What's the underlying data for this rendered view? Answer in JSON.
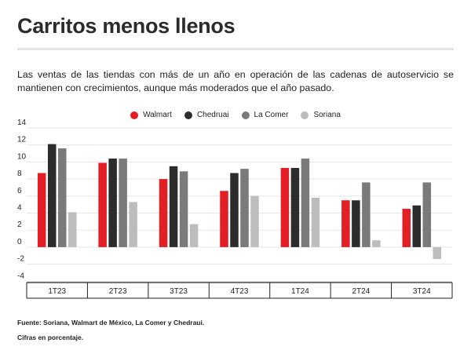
{
  "header": {
    "title": "Carritos menos llenos",
    "subtitle": "Las ventas de las tiendas con más de un año en operación de las cadenas de autoservicio se mantienen con crecimientos, aunque más moderados que el año pasado."
  },
  "footer": {
    "source": "Fuente: Soriana, Walmart de México, La Comer y Chedraui.",
    "note": "Cifras en porcentaje."
  },
  "chart_data": {
    "type": "bar",
    "categories": [
      "1T23",
      "2T23",
      "3T23",
      "4T23",
      "1T24",
      "2T24",
      "3T24"
    ],
    "series": [
      {
        "name": "Walmart",
        "color": "#e31e25",
        "values": [
          8.7,
          9.9,
          8.0,
          6.6,
          9.3,
          5.5,
          4.5
        ]
      },
      {
        "name": "Chedruai",
        "color": "#2c2c2c",
        "values": [
          12.1,
          10.4,
          9.5,
          8.7,
          9.3,
          5.5,
          4.9
        ]
      },
      {
        "name": "La Comer",
        "color": "#7a7a7a",
        "values": [
          11.6,
          10.4,
          8.9,
          9.2,
          10.4,
          7.6,
          7.6
        ]
      },
      {
        "name": "Soriana",
        "color": "#bdbdbd",
        "values": [
          4.1,
          5.3,
          2.7,
          6.0,
          5.8,
          0.8,
          -1.4
        ]
      }
    ],
    "y_ticks": [
      14,
      12,
      10,
      8,
      6,
      4,
      2,
      0,
      -2,
      -4
    ],
    "ylim": [
      -4.8,
      14
    ],
    "grid": true,
    "legend": "top-center"
  }
}
